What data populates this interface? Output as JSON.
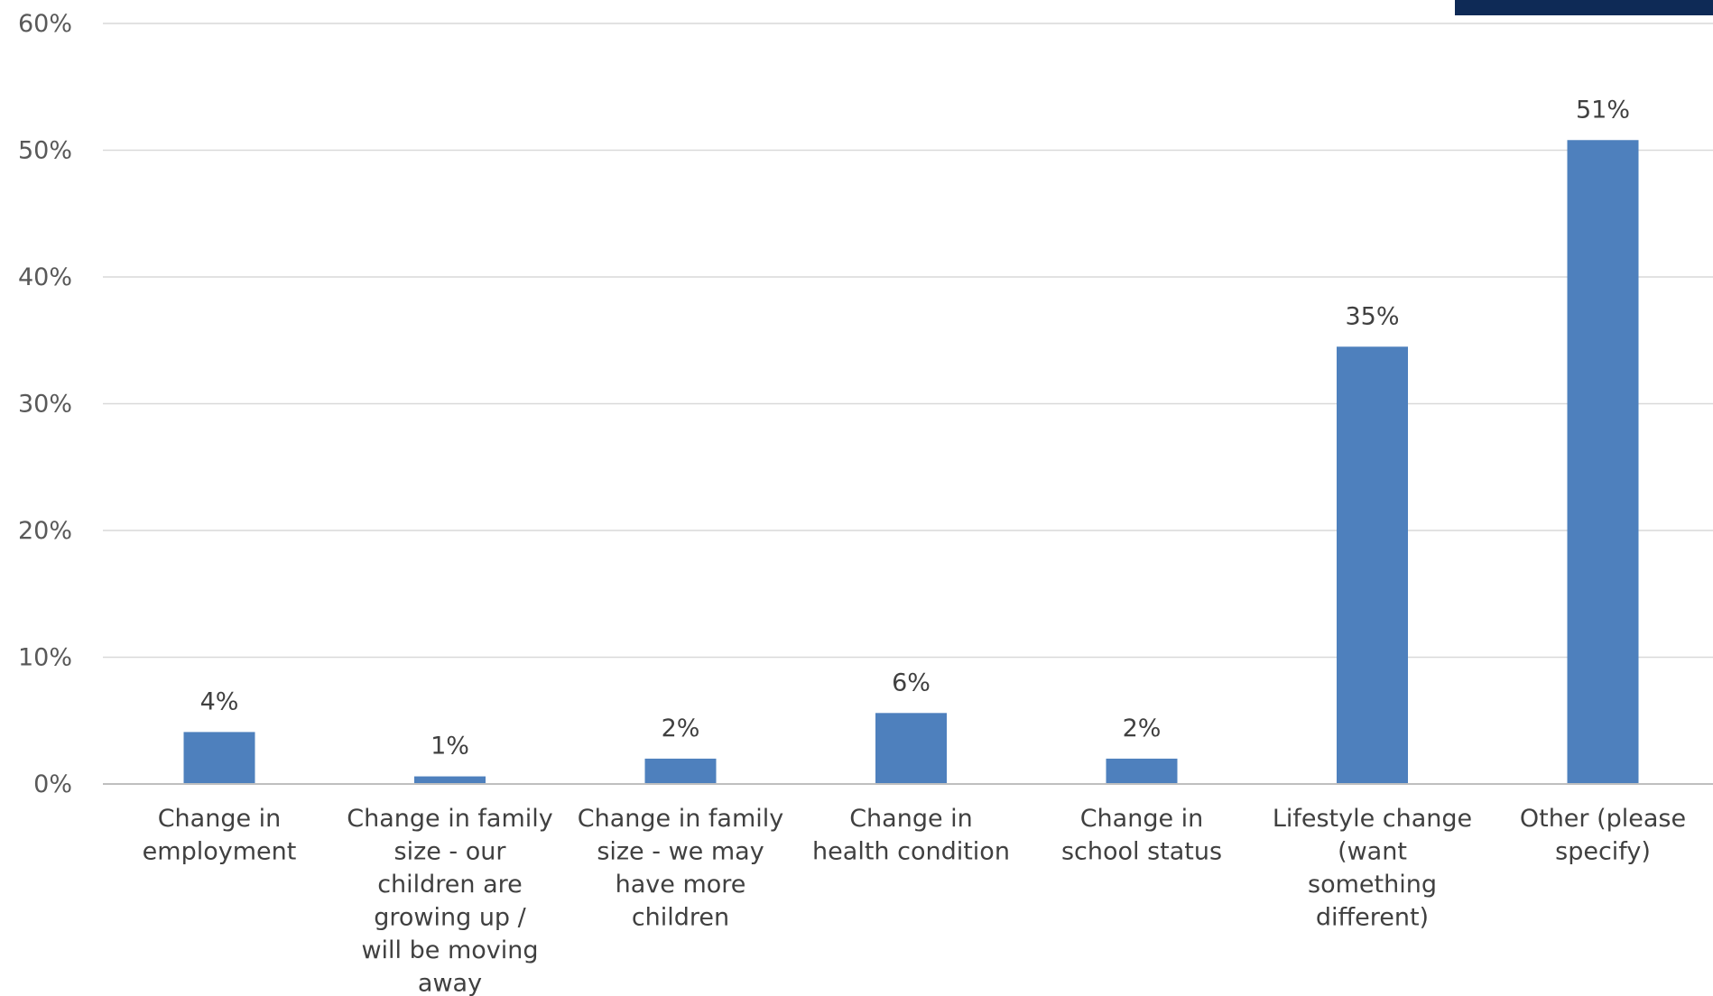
{
  "chart_data": {
    "type": "bar",
    "categories": [
      [
        "Change in",
        "employment"
      ],
      [
        "Change in family",
        "size - our",
        "children are",
        "growing up /",
        "will be moving",
        "away"
      ],
      [
        "Change in family",
        "size - we may",
        "have more",
        "children"
      ],
      [
        "Change in",
        "health condition"
      ],
      [
        "Change in",
        "school status"
      ],
      [
        "Lifestyle change",
        "(want",
        "something",
        "different)"
      ],
      [
        "Other (please",
        "specify)"
      ]
    ],
    "values": [
      4.1,
      0.6,
      2.0,
      5.6,
      2.0,
      34.5,
      50.8
    ],
    "data_labels": [
      "4%",
      "1%",
      "2%",
      "6%",
      "2%",
      "35%",
      "51%"
    ],
    "ylim": [
      0,
      60
    ],
    "yticks": [
      0,
      10,
      20,
      30,
      40,
      50,
      60
    ],
    "ytick_labels": [
      "0%",
      "10%",
      "20%",
      "30%",
      "40%",
      "50%",
      "60%"
    ],
    "grid": true,
    "colors": {
      "bar": "#4e80bd",
      "corner_mark": "#0e2a56"
    }
  }
}
